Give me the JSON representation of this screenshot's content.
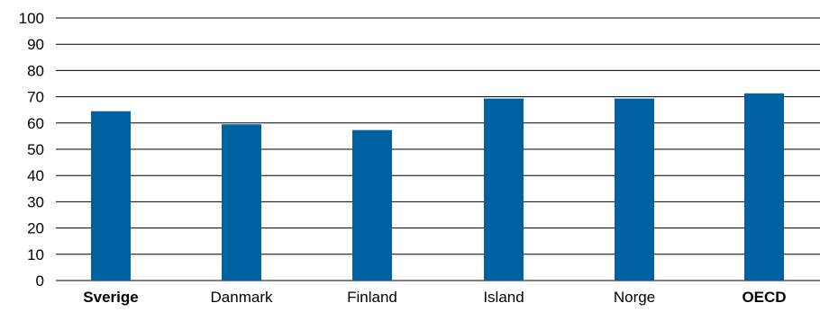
{
  "chart_data": {
    "type": "bar",
    "categories": [
      "Sverige",
      "Danmark",
      "Finland",
      "Island",
      "Norge",
      "OECD"
    ],
    "bold_categories": [
      "Sverige",
      "OECD"
    ],
    "values": [
      64.5,
      59.5,
      57.3,
      69.3,
      69.3,
      71.3
    ],
    "yticks": [
      "0",
      "10",
      "20",
      "30",
      "40",
      "50",
      "60",
      "70",
      "80",
      "90",
      "100"
    ],
    "ylim": [
      0,
      100
    ],
    "grid": true,
    "colors": {
      "bar": "#0061a0",
      "grid": "#000000",
      "text": "#000000"
    }
  }
}
